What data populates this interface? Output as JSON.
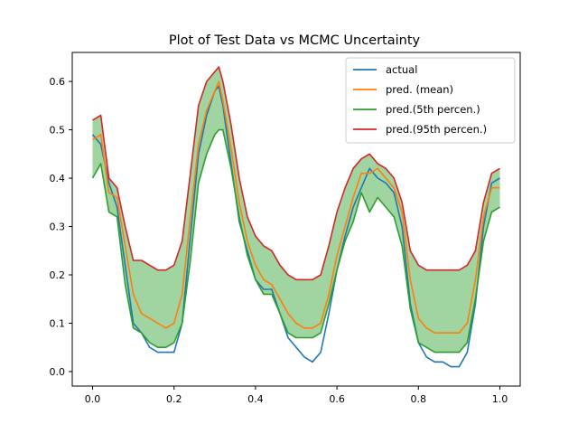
{
  "chart_data": {
    "type": "line",
    "title": "Plot of Test Data vs MCMC Uncertainty",
    "xlabel": "",
    "ylabel": "",
    "xlim": [
      -0.05,
      1.05
    ],
    "ylim": [
      -0.03,
      0.66
    ],
    "grid": false,
    "legend_position": "top-right",
    "x_ticks": [
      "0.0",
      "0.2",
      "0.4",
      "0.6",
      "0.8",
      "1.0"
    ],
    "y_ticks": [
      "0.0",
      "0.1",
      "0.2",
      "0.3",
      "0.4",
      "0.5",
      "0.6"
    ],
    "x": [
      0.0,
      0.02,
      0.04,
      0.06,
      0.08,
      0.1,
      0.12,
      0.14,
      0.16,
      0.18,
      0.2,
      0.22,
      0.24,
      0.26,
      0.28,
      0.3,
      0.31,
      0.32,
      0.34,
      0.36,
      0.38,
      0.4,
      0.42,
      0.44,
      0.46,
      0.48,
      0.5,
      0.52,
      0.54,
      0.56,
      0.58,
      0.6,
      0.62,
      0.64,
      0.66,
      0.68,
      0.7,
      0.72,
      0.74,
      0.76,
      0.78,
      0.8,
      0.82,
      0.84,
      0.86,
      0.88,
      0.9,
      0.92,
      0.94,
      0.96,
      0.98,
      1.0
    ],
    "series": [
      {
        "name": "actual",
        "color": "#1f77b4",
        "values": [
          0.49,
          0.47,
          0.39,
          0.34,
          0.22,
          0.1,
          0.08,
          0.05,
          0.04,
          0.04,
          0.04,
          0.1,
          0.28,
          0.45,
          0.53,
          0.58,
          0.59,
          0.55,
          0.43,
          0.31,
          0.25,
          0.19,
          0.17,
          0.17,
          0.12,
          0.07,
          0.05,
          0.03,
          0.02,
          0.04,
          0.12,
          0.21,
          0.28,
          0.34,
          0.38,
          0.42,
          0.4,
          0.39,
          0.37,
          0.3,
          0.14,
          0.06,
          0.03,
          0.02,
          0.02,
          0.01,
          0.01,
          0.04,
          0.14,
          0.3,
          0.39,
          0.4
        ]
      },
      {
        "name": "pred. (mean)",
        "color": "#ff7f0e",
        "values": [
          0.48,
          0.49,
          0.37,
          0.36,
          0.26,
          0.16,
          0.12,
          0.11,
          0.1,
          0.09,
          0.1,
          0.16,
          0.32,
          0.47,
          0.54,
          0.58,
          0.6,
          0.56,
          0.46,
          0.35,
          0.27,
          0.22,
          0.19,
          0.18,
          0.15,
          0.12,
          0.1,
          0.09,
          0.09,
          0.1,
          0.16,
          0.24,
          0.3,
          0.36,
          0.41,
          0.41,
          0.42,
          0.4,
          0.38,
          0.33,
          0.19,
          0.11,
          0.09,
          0.08,
          0.08,
          0.08,
          0.08,
          0.1,
          0.19,
          0.32,
          0.38,
          0.38
        ]
      },
      {
        "name": "pred.(5th percen.)",
        "color": "#2ca02c",
        "values": [
          0.4,
          0.43,
          0.33,
          0.32,
          0.18,
          0.09,
          0.08,
          0.06,
          0.05,
          0.05,
          0.06,
          0.1,
          0.23,
          0.39,
          0.45,
          0.49,
          0.5,
          0.5,
          0.42,
          0.32,
          0.24,
          0.19,
          0.16,
          0.16,
          0.12,
          0.08,
          0.07,
          0.07,
          0.07,
          0.08,
          0.14,
          0.21,
          0.27,
          0.31,
          0.37,
          0.33,
          0.36,
          0.34,
          0.32,
          0.26,
          0.13,
          0.06,
          0.05,
          0.04,
          0.04,
          0.04,
          0.04,
          0.06,
          0.15,
          0.27,
          0.33,
          0.34
        ]
      },
      {
        "name": "pred.(95th percen.)",
        "color": "#d62728",
        "values": [
          0.52,
          0.53,
          0.4,
          0.38,
          0.3,
          0.23,
          0.23,
          0.22,
          0.21,
          0.21,
          0.22,
          0.27,
          0.41,
          0.55,
          0.6,
          0.62,
          0.63,
          0.6,
          0.51,
          0.4,
          0.32,
          0.28,
          0.26,
          0.25,
          0.22,
          0.2,
          0.19,
          0.19,
          0.19,
          0.2,
          0.26,
          0.33,
          0.38,
          0.42,
          0.44,
          0.45,
          0.43,
          0.42,
          0.4,
          0.35,
          0.25,
          0.22,
          0.21,
          0.21,
          0.21,
          0.21,
          0.21,
          0.22,
          0.25,
          0.35,
          0.41,
          0.42
        ]
      }
    ],
    "fill_between": {
      "lower": "pred.(5th percen.)",
      "upper": "pred.(95th percen.)",
      "color": "#2ca02c",
      "opacity": 0.45
    }
  }
}
